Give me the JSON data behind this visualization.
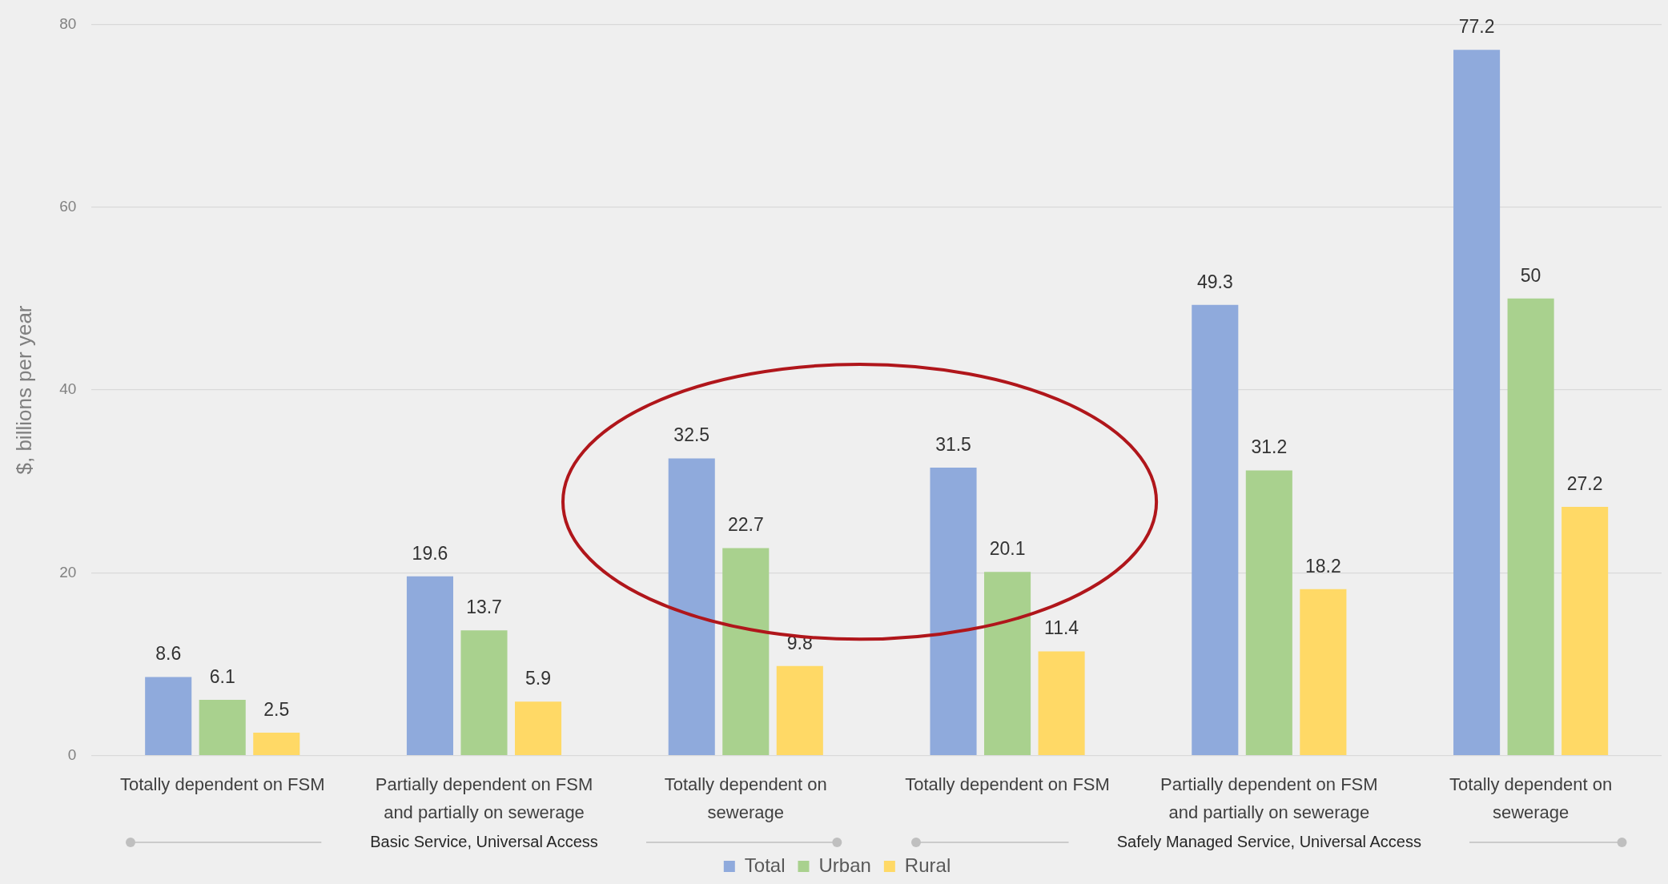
{
  "chart_data": {
    "type": "bar",
    "ylabel": "$, billions per year",
    "categories": [
      "Totally dependent on FSM",
      "Partially dependent on FSM and partially on sewerage",
      "Totally dependent on sewerage",
      "Totally dependent on FSM",
      "Partially dependent on FSM and partially on sewerage",
      "Totally dependent on sewerage"
    ],
    "series": [
      {
        "name": "Total",
        "color": "#8faadc",
        "values": [
          8.6,
          19.6,
          32.5,
          31.5,
          49.3,
          77.2
        ]
      },
      {
        "name": "Urban",
        "color": "#a9d18e",
        "values": [
          6.1,
          13.7,
          22.7,
          20.1,
          31.2,
          50
        ]
      },
      {
        "name": "Rural",
        "color": "#ffd966",
        "values": [
          2.5,
          5.9,
          9.8,
          11.4,
          18.2,
          27.2
        ]
      }
    ],
    "ylim": [
      0,
      80
    ],
    "yticks": [
      0,
      20,
      40,
      60,
      80
    ],
    "grid": "y",
    "legend": "bottom",
    "data_labels": true,
    "annotations": [
      "Basic Service, Universal Access",
      "Safely Managed Service, Universal Access"
    ]
  }
}
